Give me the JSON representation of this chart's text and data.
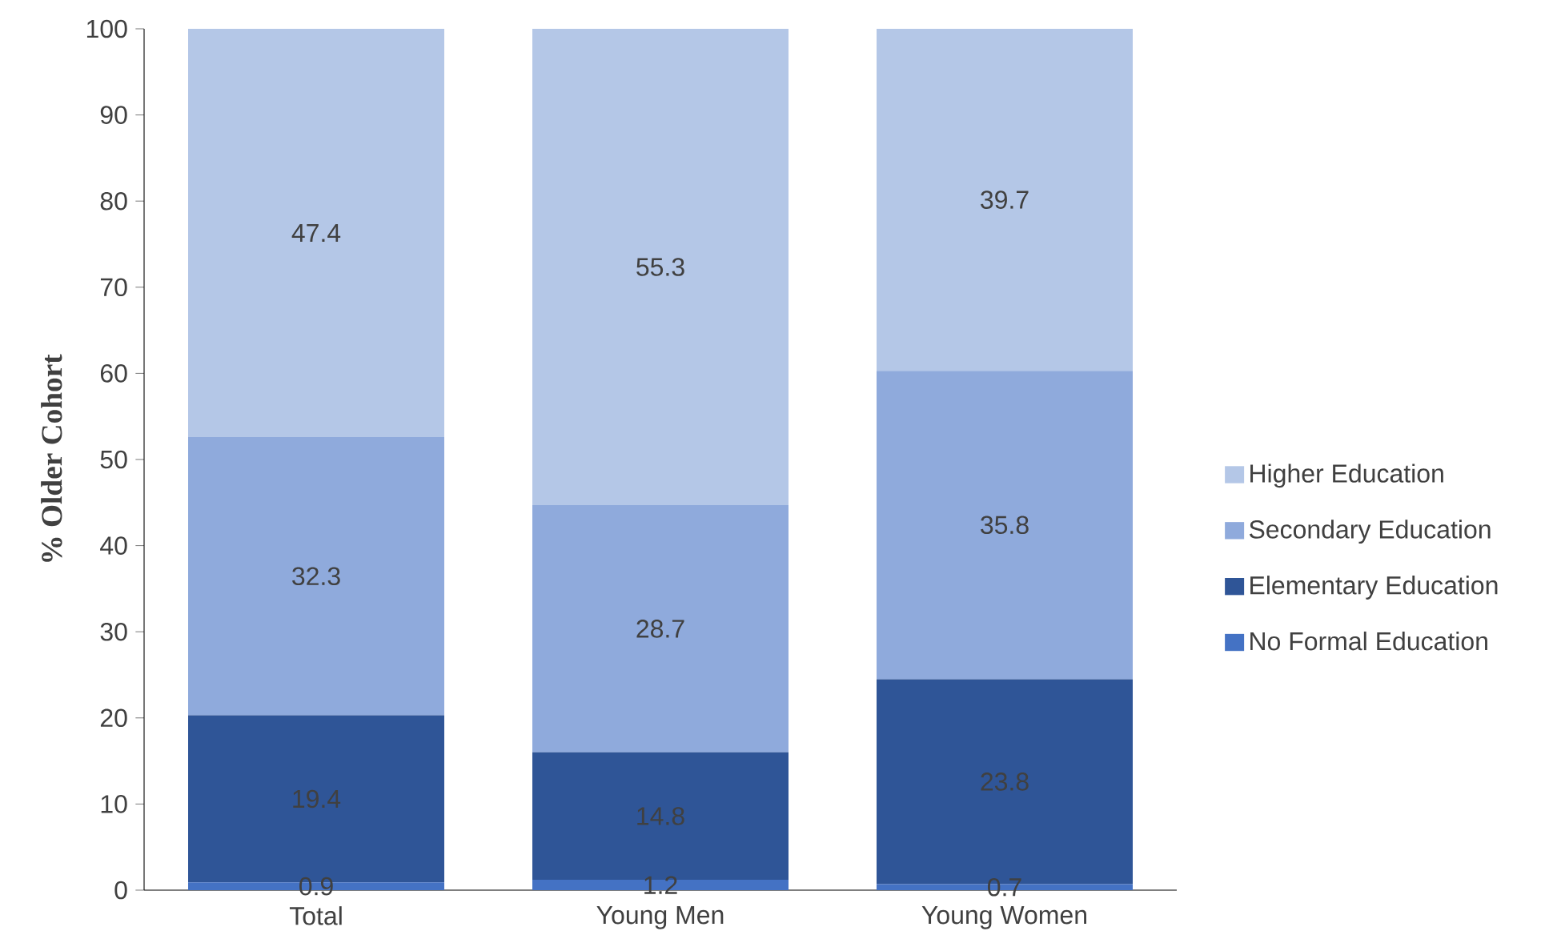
{
  "chart_data": {
    "type": "bar",
    "stacked": true,
    "ylabel": "% Older Cohort",
    "categories": [
      "Total",
      "Young Men",
      "Young Women"
    ],
    "series": [
      {
        "name": "No Formal Education",
        "color": "#4472c4",
        "values": [
          0.9,
          1.2,
          0.7
        ]
      },
      {
        "name": "Elementary Education",
        "color": "#2f5597",
        "values": [
          19.4,
          14.8,
          23.8
        ]
      },
      {
        "name": "Secondary Education",
        "color": "#8faadc",
        "values": [
          32.3,
          28.7,
          35.8
        ]
      },
      {
        "name": "Higher Education",
        "color": "#b4c7e7",
        "values": [
          47.4,
          55.3,
          39.7
        ]
      }
    ],
    "ylim": [
      0,
      100
    ],
    "yticks": [
      0,
      10,
      20,
      30,
      40,
      50,
      60,
      70,
      80,
      90,
      100
    ],
    "data_labels": true,
    "legend": "right",
    "grid": false
  }
}
